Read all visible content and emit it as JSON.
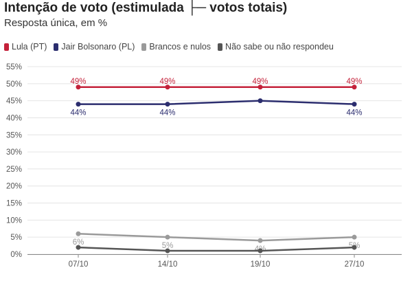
{
  "title": "Intenção de voto (estimulada ├─ votos totais)",
  "subtitle": "Resposta única, em %",
  "colors": {
    "lula": "#c4213a",
    "bolsonaro": "#2b2d6e",
    "brancos": "#9a9a9a",
    "naosabe": "#555555",
    "grid": "#e4e4e4",
    "axis": "#555555"
  },
  "chart_data": {
    "type": "line",
    "categories": [
      "07/10",
      "14/10",
      "19/10",
      "27/10"
    ],
    "ylim": [
      0,
      55
    ],
    "yticks": [
      0,
      5,
      10,
      15,
      20,
      25,
      30,
      35,
      40,
      45,
      50,
      55
    ],
    "ytick_labels": [
      "0%",
      "5%",
      "10%",
      "15%",
      "20%",
      "25%",
      "30%",
      "35%",
      "40%",
      "45%",
      "50%",
      "55%"
    ],
    "grid": true,
    "legend_position": "top-left",
    "series": [
      {
        "name": "Lula (PT)",
        "color_key": "lula",
        "values": [
          49,
          49,
          49,
          49
        ],
        "labels": [
          "49%",
          "49%",
          "49%",
          "49%"
        ],
        "label_pos": "above"
      },
      {
        "name": "Jair Bolsonaro (PL)",
        "color_key": "bolsonaro",
        "values": [
          44,
          44,
          45,
          44
        ],
        "labels": [
          "44%",
          "44%",
          "",
          "44%"
        ],
        "label_pos": "below"
      },
      {
        "name": "Brancos e nulos",
        "color_key": "brancos",
        "values": [
          6,
          5,
          4,
          5
        ],
        "labels": [
          "6%",
          "5%",
          "4%",
          "5%"
        ],
        "label_pos": "below"
      },
      {
        "name": "Não sabe ou não respondeu",
        "color_key": "naosabe",
        "values": [
          2,
          1,
          1,
          2
        ],
        "labels": [
          "",
          "",
          "",
          ""
        ],
        "label_pos": "below"
      }
    ]
  }
}
